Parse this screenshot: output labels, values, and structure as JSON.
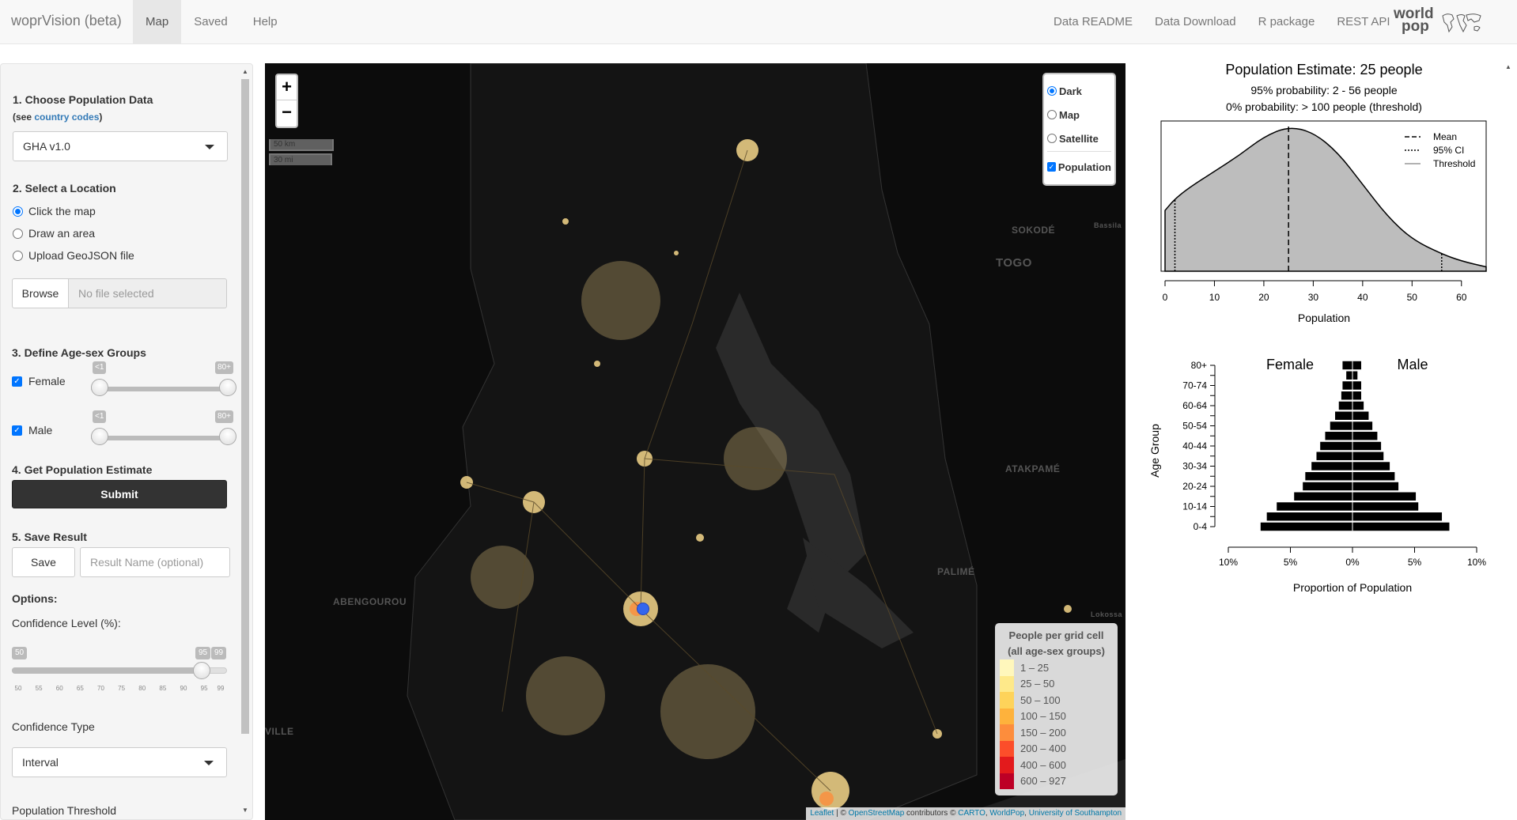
{
  "navbar": {
    "brand": "woprVision (beta)",
    "tabs": [
      {
        "label": "Map",
        "active": true
      },
      {
        "label": "Saved",
        "active": false
      },
      {
        "label": "Help",
        "active": false
      }
    ],
    "links": [
      "Data README",
      "Data Download",
      "R package",
      "REST API"
    ],
    "logo_text_1": "world",
    "logo_text_2": "pop"
  },
  "sidebar": {
    "step1_title": "1. Choose Population Data",
    "step1_note_prefix": "(see ",
    "step1_note_link": "country codes",
    "step1_note_suffix": ")",
    "dataset_selected": "GHA v1.0",
    "step2_title": "2. Select a Location",
    "location_options": [
      {
        "label": "Click the map",
        "selected": true
      },
      {
        "label": "Draw an area",
        "selected": false
      },
      {
        "label": "Upload GeoJSON file",
        "selected": false
      }
    ],
    "browse_label": "Browse",
    "file_placeholder": "No file selected",
    "step3_title": "3. Define Age-sex Groups",
    "female_label": "Female",
    "male_label": "Male",
    "age_min_label": "<1",
    "age_max_label": "80+",
    "step4_title": "4. Get Population Estimate",
    "submit_label": "Submit",
    "step5_title": "5. Save Result",
    "save_label": "Save",
    "result_name_placeholder": "Result Name (optional)",
    "options_title": "Options:",
    "confidence_label": "Confidence Level (%):",
    "confidence_min": "50",
    "confidence_max": "99",
    "confidence_value": "95",
    "confidence_ticks": [
      "50",
      "55",
      "60",
      "65",
      "70",
      "75",
      "80",
      "85",
      "90",
      "95",
      "99"
    ],
    "confidence_type_label": "Confidence Type",
    "confidence_type_selected": "Interval",
    "threshold_label": "Population Threshold"
  },
  "map": {
    "zoom_in": "+",
    "zoom_out": "−",
    "scale_km": "50 km",
    "scale_mi": "30 mi",
    "layers": [
      {
        "label": "Dark",
        "type": "radio",
        "selected": true
      },
      {
        "label": "Map",
        "type": "radio",
        "selected": false
      },
      {
        "label": "Satellite",
        "type": "radio",
        "selected": false
      },
      {
        "label": "Population",
        "type": "checkbox",
        "selected": true
      }
    ],
    "place_labels": [
      "SOKODÉ",
      "TOGO",
      "ATAKPAMÉ",
      "PALIMÉ",
      "ABENGOUROU",
      "VILLE",
      "Bassila",
      "Lokossa"
    ],
    "legend_title_1": "People per grid cell",
    "legend_title_2": "(all age-sex groups)",
    "legend": [
      {
        "label": "1 – 25",
        "color": "#fff7bc"
      },
      {
        "label": "25 – 50",
        "color": "#fee98a"
      },
      {
        "label": "50 – 100",
        "color": "#fed35a"
      },
      {
        "label": "100 – 150",
        "color": "#feb23c"
      },
      {
        "label": "150 – 200",
        "color": "#fd8d3c"
      },
      {
        "label": "200 – 400",
        "color": "#fc4e2a"
      },
      {
        "label": "400 – 600",
        "color": "#e31a1c"
      },
      {
        "label": "600 – 927",
        "color": "#bd0026"
      }
    ],
    "attribution_1": "Leaflet",
    "attribution_2": " | © ",
    "attribution_3": "OpenStreetMap",
    "attribution_4": " contributors © ",
    "attribution_5": "CARTO",
    "attribution_6": ", ",
    "attribution_7": "WorldPop",
    "attribution_8": ", ",
    "attribution_9": "University of Southampton"
  },
  "chart_data": [
    {
      "type": "area",
      "title": "Population Estimate: 25 people",
      "subtitle_1": "95% probability: 2 - 56 people",
      "subtitle_2": "0% probability: > 100 people (threshold)",
      "xlabel": "Population",
      "xlim": [
        0,
        65
      ],
      "xticks": [
        "0",
        "10",
        "20",
        "30",
        "40",
        "50",
        "60"
      ],
      "mean": 25,
      "ci": [
        2,
        56
      ],
      "legend": [
        "Mean",
        "95% CI",
        "Threshold"
      ],
      "density_x": [
        0,
        2,
        5,
        10,
        15,
        20,
        25,
        30,
        35,
        40,
        45,
        50,
        56,
        60,
        65
      ],
      "density_y": [
        0.42,
        0.5,
        0.58,
        0.69,
        0.8,
        0.93,
        1.0,
        0.96,
        0.82,
        0.6,
        0.38,
        0.22,
        0.12,
        0.07,
        0.03
      ]
    },
    {
      "type": "bar",
      "title_female": "Female",
      "title_male": "Male",
      "ylabel": "Age Group",
      "xlabel": "Proportion of Population",
      "xticks": [
        "10%",
        "5%",
        "0%",
        "5%",
        "10%"
      ],
      "xlim": [
        -10,
        10
      ],
      "categories": [
        "0-4",
        "5-9",
        "10-14",
        "15-19",
        "20-24",
        "25-29",
        "30-34",
        "35-39",
        "40-44",
        "45-49",
        "50-54",
        "55-59",
        "60-64",
        "65-69",
        "70-74",
        "75-79",
        "80+"
      ],
      "category_labels_shown": [
        "80+",
        "70-74",
        "60-64",
        "50-54",
        "40-44",
        "30-34",
        "20-24",
        "10-14",
        "0-4"
      ],
      "series": [
        {
          "name": "Female",
          "values": [
            7.4,
            6.9,
            6.1,
            4.7,
            4.0,
            3.8,
            3.3,
            2.9,
            2.6,
            2.2,
            1.8,
            1.4,
            1.1,
            0.9,
            0.8,
            0.5,
            0.8
          ]
        },
        {
          "name": "Male",
          "values": [
            7.8,
            7.2,
            5.3,
            5.1,
            3.7,
            3.4,
            3.0,
            2.5,
            2.3,
            2.0,
            1.6,
            1.3,
            0.9,
            0.7,
            0.7,
            0.4,
            0.7
          ]
        }
      ]
    }
  ]
}
